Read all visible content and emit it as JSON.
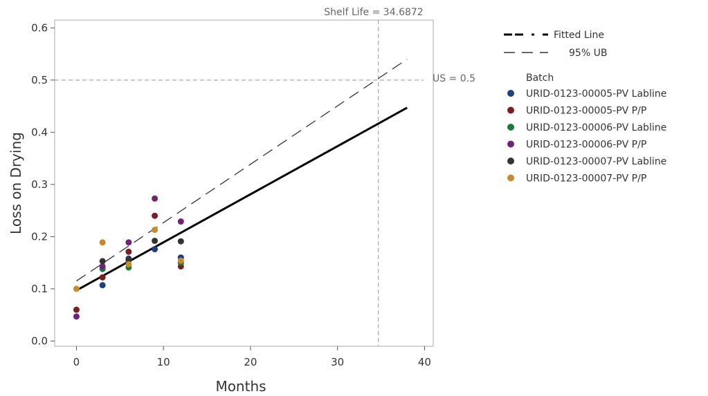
{
  "chart_data": {
    "type": "scatter",
    "xlabel": "Months",
    "ylabel": "Loss on Drying",
    "xlim": [
      -2.5,
      41
    ],
    "ylim": [
      -0.01,
      0.615
    ],
    "x_ticks": [
      0,
      10,
      20,
      30,
      40
    ],
    "y_ticks": [
      0.0,
      0.1,
      0.2,
      0.3,
      0.4,
      0.5,
      0.6
    ],
    "y_tick_labels": [
      "0.0",
      "0.1",
      "0.2",
      "0.3",
      "0.4",
      "0.5",
      "0.6"
    ],
    "grid": false,
    "fitted_line": {
      "name": "Fitted Line",
      "x": [
        0,
        38
      ],
      "y": [
        0.097,
        0.447
      ]
    },
    "upper_bound": {
      "name": "95% UB",
      "x": [
        0,
        38
      ],
      "y": [
        0.115,
        0.54
      ]
    },
    "spec_limit": {
      "label": "US = 0.5",
      "value": 0.5
    },
    "shelf_life": {
      "label": "Shelf Life = 34.6872",
      "value": 34.6872
    },
    "legend_title": "Batch",
    "legend_position": "right",
    "series": [
      {
        "name": "URID-0123-00005-PV Labline",
        "color": "#1f3f86",
        "points": [
          [
            3,
            0.107
          ],
          [
            6,
            0.158
          ],
          [
            9,
            0.176
          ],
          [
            12,
            0.16
          ]
        ]
      },
      {
        "name": "URID-0123-00005-PV P/P",
        "color": "#7b1e23",
        "points": [
          [
            0,
            0.06
          ],
          [
            3,
            0.122
          ],
          [
            6,
            0.171
          ],
          [
            9,
            0.24
          ],
          [
            12,
            0.143
          ]
        ]
      },
      {
        "name": "URID-0123-00006-PV Labline",
        "color": "#1a7a3d",
        "points": [
          [
            3,
            0.138
          ],
          [
            6,
            0.141
          ],
          [
            12,
            0.15
          ]
        ]
      },
      {
        "name": "URID-0123-00006-PV P/P",
        "color": "#6e2374",
        "points": [
          [
            0,
            0.047
          ],
          [
            3,
            0.143
          ],
          [
            6,
            0.189
          ],
          [
            9,
            0.273
          ],
          [
            12,
            0.229
          ]
        ]
      },
      {
        "name": "URID-0123-00007-PV Labline",
        "color": "#333333",
        "points": [
          [
            3,
            0.153
          ],
          [
            6,
            0.155
          ],
          [
            9,
            0.192
          ],
          [
            12,
            0.191
          ]
        ]
      },
      {
        "name": "URID-0123-00007-PV P/P",
        "color": "#c98b29",
        "points": [
          [
            0,
            0.1
          ],
          [
            3,
            0.189
          ],
          [
            6,
            0.147
          ],
          [
            9,
            0.213
          ],
          [
            12,
            0.154
          ]
        ]
      }
    ]
  }
}
